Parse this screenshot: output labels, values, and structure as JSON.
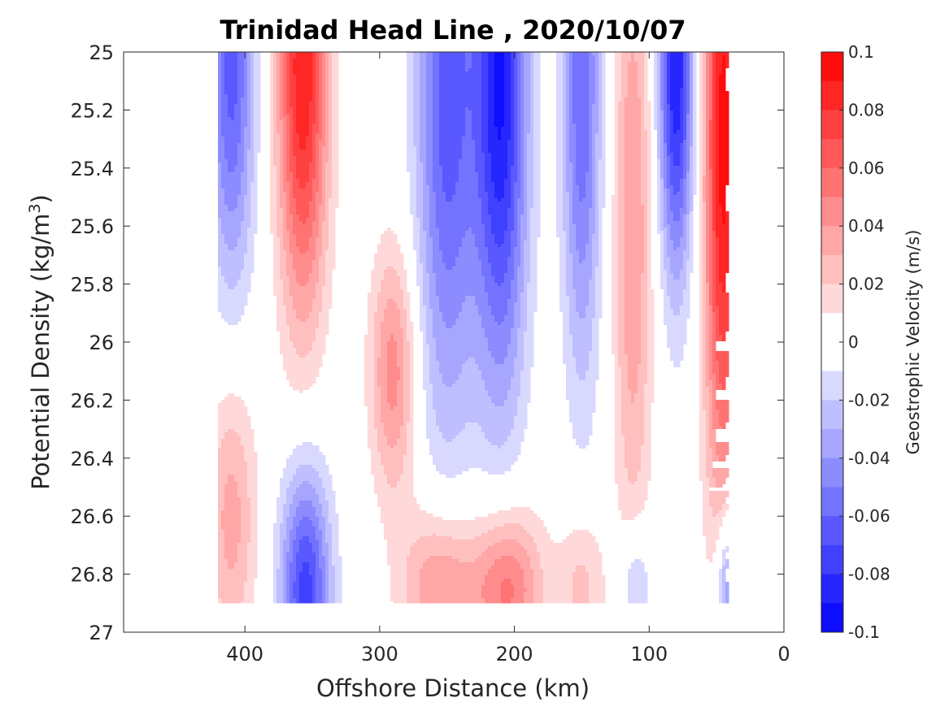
{
  "chart_data": {
    "type": "heatmap",
    "title": "Trinidad Head Line , 2020/10/07",
    "xlabel": "Offshore Distance (km)",
    "ylabel_main": "Potential Density (kg/m",
    "ylabel_sup": "3",
    "ylabel_close": ")",
    "xlim": [
      490,
      0
    ],
    "ylim": [
      25,
      27
    ],
    "x_reversed": true,
    "y_reversed": true,
    "x_ticks": [
      400,
      300,
      200,
      100,
      0
    ],
    "x_tick_labels": [
      "400",
      "300",
      "200",
      "100",
      "0"
    ],
    "y_ticks": [
      25,
      25.2,
      25.4,
      25.6,
      25.8,
      26,
      26.2,
      26.4,
      26.6,
      26.8,
      27
    ],
    "y_tick_labels": [
      "25",
      "25.2",
      "25.4",
      "25.6",
      "25.8",
      "26",
      "26.2",
      "26.4",
      "26.6",
      "26.8",
      "27"
    ],
    "colorbar": {
      "label": "Geostrophic Velocity (m/s)",
      "clim": [
        -0.1,
        0.1
      ],
      "ticks": [
        0.1,
        0.08,
        0.06,
        0.04,
        0.02,
        0,
        -0.02,
        -0.04,
        -0.06,
        -0.08,
        -0.1
      ],
      "tick_labels": [
        "0.1",
        "0.08",
        "0.06",
        "0.04",
        "0.02",
        "0",
        "-0.02",
        "-0.04",
        "-0.06",
        "-0.08",
        "-0.1"
      ],
      "levels": 20,
      "positive_color": "#ff0000",
      "negative_color": "#0000ff",
      "zero_color": "#ffffff"
    },
    "data_extent": {
      "x_min": 40,
      "x_max": 420,
      "y_bottom": 26.9
    },
    "cores": [
      {
        "x": 410,
        "sigma": 25.02,
        "velocity": -0.065,
        "x_width": 12,
        "sigma_spread": 0.55
      },
      {
        "x": 357,
        "sigma": 25.05,
        "velocity": 0.09,
        "x_width": 13,
        "sigma_spread": 0.6
      },
      {
        "x": 250,
        "sigma": 25.15,
        "velocity": -0.065,
        "x_width": 16,
        "sigma_spread": 0.8
      },
      {
        "x": 210,
        "sigma": 25.1,
        "velocity": -0.09,
        "x_width": 14,
        "sigma_spread": 0.75
      },
      {
        "x": 150,
        "sigma": 25.1,
        "velocity": -0.06,
        "x_width": 10,
        "sigma_spread": 0.7
      },
      {
        "x": 112,
        "sigma": 25.6,
        "velocity": 0.04,
        "x_width": 10,
        "sigma_spread": 0.8
      },
      {
        "x": 80,
        "sigma": 25.05,
        "velocity": -0.09,
        "x_width": 9,
        "sigma_spread": 0.5
      },
      {
        "x": 45,
        "sigma": 25.3,
        "velocity": 0.095,
        "x_width": 10,
        "sigma_spread": 0.9
      },
      {
        "x": 290,
        "sigma": 26.1,
        "velocity": 0.045,
        "x_width": 12,
        "sigma_spread": 0.3
      },
      {
        "x": 410,
        "sigma": 26.6,
        "velocity": 0.035,
        "x_width": 13,
        "sigma_spread": 0.35
      },
      {
        "x": 355,
        "sigma": 26.85,
        "velocity": -0.075,
        "x_width": 13,
        "sigma_spread": 0.3
      },
      {
        "x": 255,
        "sigma": 26.85,
        "velocity": 0.045,
        "x_width": 20,
        "sigma_spread": 0.2
      },
      {
        "x": 205,
        "sigma": 26.85,
        "velocity": 0.055,
        "x_width": 18,
        "sigma_spread": 0.2
      },
      {
        "x": 150,
        "sigma": 26.85,
        "velocity": 0.025,
        "x_width": 12,
        "sigma_spread": 0.2
      },
      {
        "x": 110,
        "sigma": 26.85,
        "velocity": -0.03,
        "x_width": 8,
        "sigma_spread": 0.15
      },
      {
        "x": 40,
        "sigma": 26.85,
        "velocity": -0.06,
        "x_width": 7,
        "sigma_spread": 0.2
      }
    ]
  }
}
